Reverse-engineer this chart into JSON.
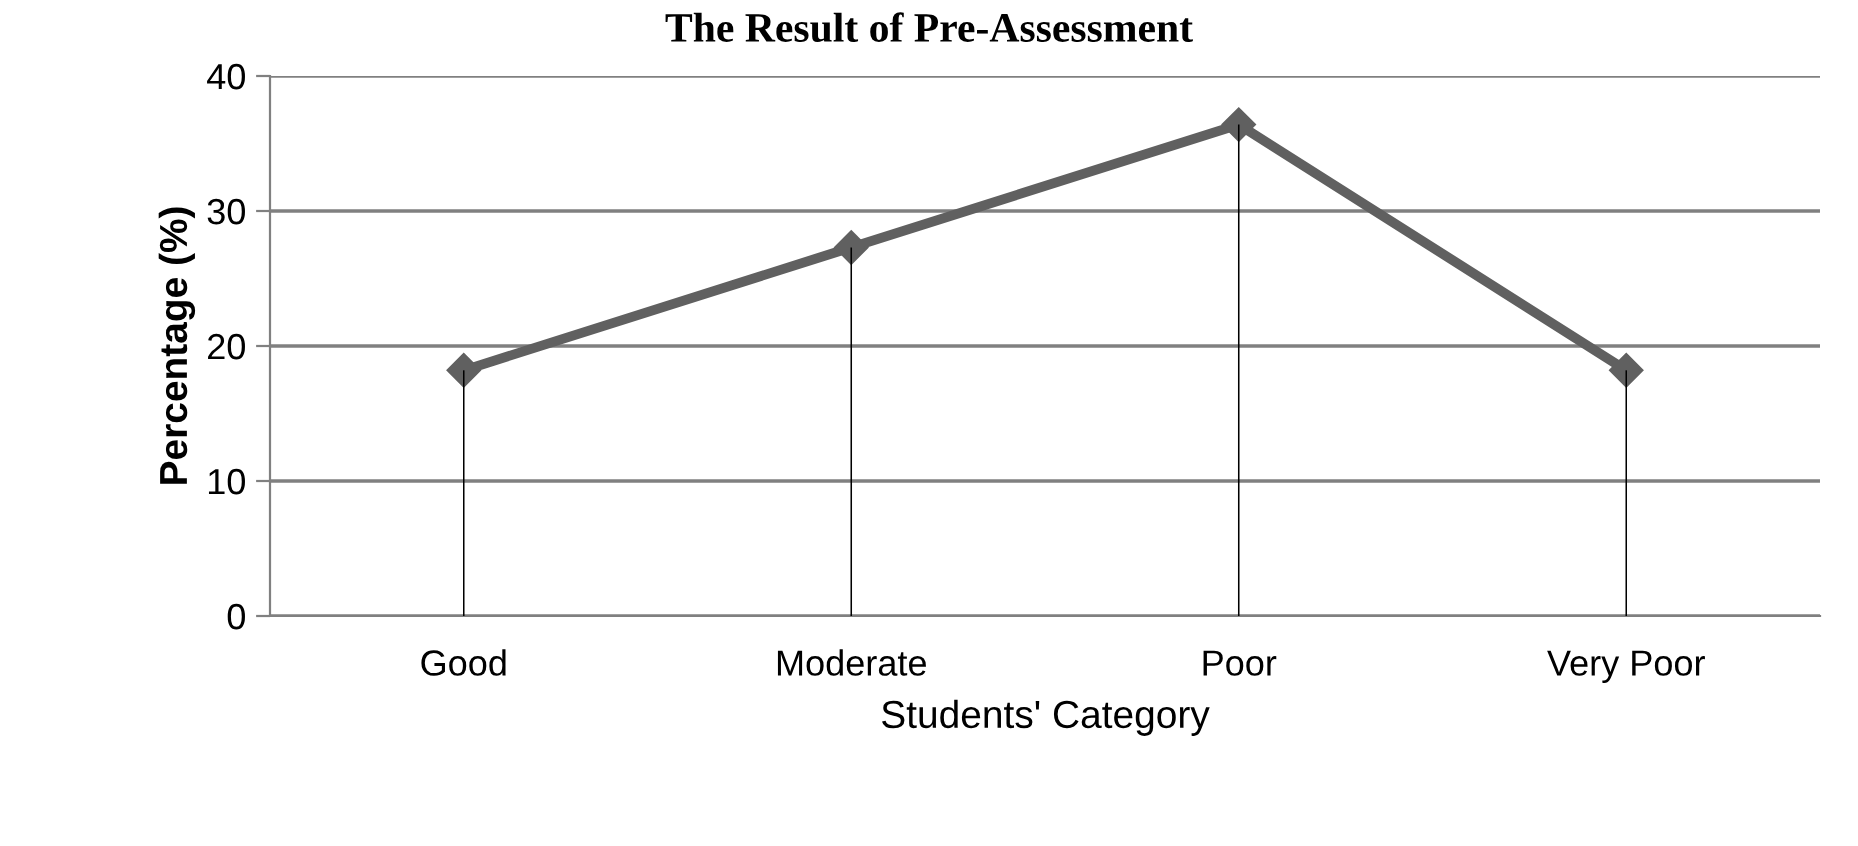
{
  "chart_data": {
    "type": "line",
    "title": "The Result of Pre-Assessment",
    "xlabel": "Students' Category",
    "ylabel": "Percentage (%)",
    "categories": [
      "Good",
      "Moderate",
      "Poor",
      "Very Poor"
    ],
    "series": [
      {
        "type": "bar",
        "color": "#000000",
        "values": [
          18.2,
          27.3,
          36.4,
          18.2
        ]
      },
      {
        "color": "#606060",
        "values": [
          18.2,
          27.3,
          36.4,
          18.2
        ]
      }
    ],
    "ylim": [
      0,
      40
    ],
    "yticks": [
      0,
      10,
      20,
      30,
      40
    ],
    "grid": "y",
    "marker": "diamond",
    "line_style": "solid",
    "legend": false
  }
}
